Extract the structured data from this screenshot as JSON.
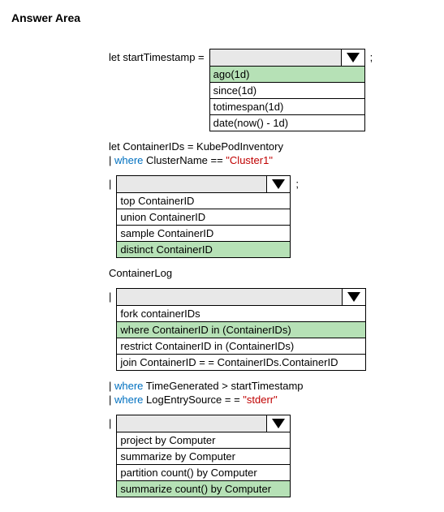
{
  "title": "Answer Area",
  "row1": {
    "label": "let startTimestamp =",
    "dd_width": 192,
    "items": [
      "ago(1d)",
      "since(1d)",
      "totimespan(1d)",
      "date(now() - 1d)"
    ],
    "highlight_index": 0
  },
  "line2a": "let ContainerIDs = KubePodInventory",
  "line2b_pipe": "| ",
  "line2b_kw": "where",
  "line2b_txt": " ClusterName == ",
  "line2b_str": "\"Cluster1\"",
  "row2": {
    "prefix": "|",
    "dd_width": 215,
    "items": [
      "top ContainerID",
      "union ContainerID",
      "sample ContainerID",
      "distinct ContainerID"
    ],
    "highlight_index": 3
  },
  "header3": "ContainerLog",
  "row3": {
    "prefix": "|",
    "dd_width": 308,
    "items": [
      "fork containerIDs",
      "where ContainerID in (ContainerIDs)",
      "restrict ContainerID in (ContainerIDs)",
      "join ContainerID = = ContainerIDs.ContainerID"
    ],
    "highlight_index": 1
  },
  "line4a_pipe": "| ",
  "line4a_kw": "where",
  "line4a_txt": " TimeGenerated > startTimestamp",
  "line4b_pipe": "| ",
  "line4b_kw": "where",
  "line4b_txt": " LogEntrySource = = ",
  "line4b_str": "\"stderr\"",
  "row4": {
    "prefix": "|",
    "dd_width": 215,
    "items": [
      "project by Computer",
      "summarize by Computer",
      "partition count() by Computer",
      "summarize count() by Computer"
    ],
    "highlight_index": 3
  }
}
